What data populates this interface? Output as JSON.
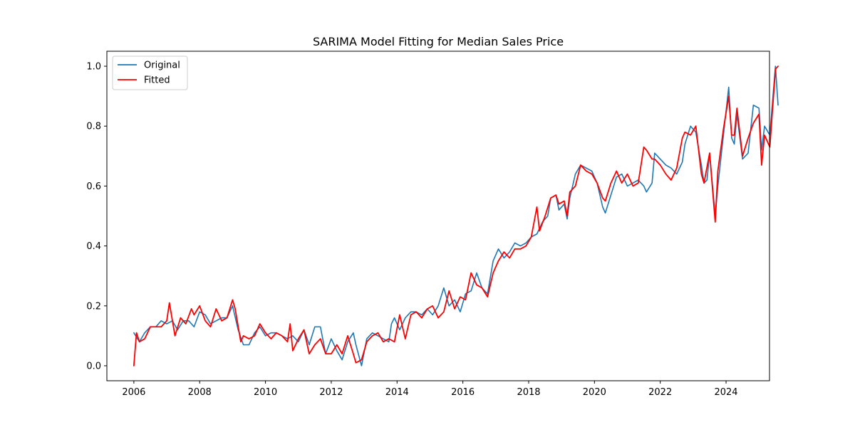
{
  "chart_data": {
    "type": "line",
    "title": "SARIMA Model Fitting for Median Sales Price",
    "xlabel": "",
    "ylabel": "",
    "xlim": [
      2005.18,
      2025.32
    ],
    "ylim": [
      -0.05,
      1.05
    ],
    "x_ticks": [
      2006,
      2008,
      2010,
      2012,
      2014,
      2016,
      2018,
      2020,
      2022,
      2024
    ],
    "y_ticks": [
      0.0,
      0.2,
      0.4,
      0.6,
      0.8,
      1.0
    ],
    "y_tick_labels": [
      "0.0",
      "0.2",
      "0.4",
      "0.6",
      "0.8",
      "1.0"
    ],
    "grid": false,
    "legend_position": "upper-left",
    "series": [
      {
        "name": "Original",
        "color": "#1f77b4",
        "points": [
          [
            2006.0,
            0.11
          ],
          [
            2006.17,
            0.08
          ],
          [
            2006.33,
            0.11
          ],
          [
            2006.5,
            0.13
          ],
          [
            2006.67,
            0.13
          ],
          [
            2006.83,
            0.15
          ],
          [
            2007.0,
            0.14
          ],
          [
            2007.17,
            0.15
          ],
          [
            2007.33,
            0.12
          ],
          [
            2007.5,
            0.15
          ],
          [
            2007.67,
            0.15
          ],
          [
            2007.83,
            0.13
          ],
          [
            2008.0,
            0.18
          ],
          [
            2008.17,
            0.17
          ],
          [
            2008.33,
            0.14
          ],
          [
            2008.5,
            0.15
          ],
          [
            2008.67,
            0.16
          ],
          [
            2008.83,
            0.16
          ],
          [
            2009.0,
            0.2
          ],
          [
            2009.17,
            0.12
          ],
          [
            2009.33,
            0.07
          ],
          [
            2009.5,
            0.07
          ],
          [
            2009.67,
            0.11
          ],
          [
            2009.83,
            0.13
          ],
          [
            2010.0,
            0.1
          ],
          [
            2010.17,
            0.11
          ],
          [
            2010.33,
            0.11
          ],
          [
            2010.5,
            0.1
          ],
          [
            2010.67,
            0.09
          ],
          [
            2010.83,
            0.1
          ],
          [
            2011.0,
            0.08
          ],
          [
            2011.17,
            0.12
          ],
          [
            2011.33,
            0.07
          ],
          [
            2011.5,
            0.13
          ],
          [
            2011.67,
            0.13
          ],
          [
            2011.83,
            0.04
          ],
          [
            2012.0,
            0.09
          ],
          [
            2012.17,
            0.05
          ],
          [
            2012.33,
            0.02
          ],
          [
            2012.5,
            0.08
          ],
          [
            2012.67,
            0.11
          ],
          [
            2012.75,
            0.07
          ],
          [
            2012.92,
            0.0
          ],
          [
            2013.08,
            0.09
          ],
          [
            2013.25,
            0.11
          ],
          [
            2013.42,
            0.1
          ],
          [
            2013.58,
            0.09
          ],
          [
            2013.75,
            0.08
          ],
          [
            2013.83,
            0.14
          ],
          [
            2013.92,
            0.16
          ],
          [
            2014.08,
            0.12
          ],
          [
            2014.25,
            0.16
          ],
          [
            2014.42,
            0.18
          ],
          [
            2014.58,
            0.18
          ],
          [
            2014.75,
            0.17
          ],
          [
            2014.92,
            0.19
          ],
          [
            2015.08,
            0.17
          ],
          [
            2015.25,
            0.2
          ],
          [
            2015.42,
            0.26
          ],
          [
            2015.58,
            0.2
          ],
          [
            2015.75,
            0.22
          ],
          [
            2015.92,
            0.18
          ],
          [
            2016.08,
            0.24
          ],
          [
            2016.25,
            0.25
          ],
          [
            2016.42,
            0.31
          ],
          [
            2016.58,
            0.26
          ],
          [
            2016.75,
            0.24
          ],
          [
            2016.92,
            0.35
          ],
          [
            2017.08,
            0.39
          ],
          [
            2017.25,
            0.36
          ],
          [
            2017.42,
            0.38
          ],
          [
            2017.58,
            0.41
          ],
          [
            2017.75,
            0.4
          ],
          [
            2017.92,
            0.41
          ],
          [
            2018.08,
            0.43
          ],
          [
            2018.25,
            0.44
          ],
          [
            2018.42,
            0.48
          ],
          [
            2018.58,
            0.5
          ],
          [
            2018.67,
            0.56
          ],
          [
            2018.83,
            0.57
          ],
          [
            2018.92,
            0.52
          ],
          [
            2019.08,
            0.54
          ],
          [
            2019.17,
            0.49
          ],
          [
            2019.25,
            0.56
          ],
          [
            2019.42,
            0.64
          ],
          [
            2019.58,
            0.67
          ],
          [
            2019.75,
            0.66
          ],
          [
            2019.92,
            0.65
          ],
          [
            2020.08,
            0.61
          ],
          [
            2020.25,
            0.53
          ],
          [
            2020.33,
            0.51
          ],
          [
            2020.5,
            0.57
          ],
          [
            2020.67,
            0.63
          ],
          [
            2020.83,
            0.64
          ],
          [
            2021.0,
            0.6
          ],
          [
            2021.17,
            0.61
          ],
          [
            2021.33,
            0.62
          ],
          [
            2021.5,
            0.6
          ],
          [
            2021.58,
            0.58
          ],
          [
            2021.75,
            0.61
          ],
          [
            2021.83,
            0.71
          ],
          [
            2022.0,
            0.69
          ],
          [
            2022.17,
            0.67
          ],
          [
            2022.33,
            0.66
          ],
          [
            2022.5,
            0.64
          ],
          [
            2022.67,
            0.68
          ],
          [
            2022.75,
            0.74
          ],
          [
            2022.92,
            0.8
          ],
          [
            2023.08,
            0.78
          ],
          [
            2023.25,
            0.67
          ],
          [
            2023.33,
            0.61
          ],
          [
            2023.42,
            0.62
          ],
          [
            2023.5,
            0.71
          ],
          [
            2023.67,
            0.5
          ],
          [
            2023.75,
            0.6
          ],
          [
            2023.92,
            0.77
          ],
          [
            2024.08,
            0.93
          ],
          [
            2024.17,
            0.76
          ],
          [
            2024.25,
            0.74
          ],
          [
            2024.33,
            0.84
          ],
          [
            2024.5,
            0.69
          ],
          [
            2024.67,
            0.71
          ],
          [
            2024.83,
            0.87
          ],
          [
            2025.0,
            0.86
          ],
          [
            2025.08,
            0.72
          ],
          [
            2025.17,
            0.8
          ],
          [
            2025.33,
            0.77
          ],
          [
            2025.5,
            1.0
          ],
          [
            2025.58,
            0.87
          ]
        ]
      },
      {
        "name": "Fitted",
        "color": "#ff0000",
        "points": [
          [
            2006.0,
            0.0
          ],
          [
            2006.08,
            0.11
          ],
          [
            2006.17,
            0.08
          ],
          [
            2006.33,
            0.09
          ],
          [
            2006.5,
            0.13
          ],
          [
            2006.67,
            0.13
          ],
          [
            2006.83,
            0.13
          ],
          [
            2007.0,
            0.15
          ],
          [
            2007.08,
            0.21
          ],
          [
            2007.25,
            0.1
          ],
          [
            2007.42,
            0.16
          ],
          [
            2007.58,
            0.14
          ],
          [
            2007.75,
            0.19
          ],
          [
            2007.83,
            0.17
          ],
          [
            2008.0,
            0.2
          ],
          [
            2008.17,
            0.15
          ],
          [
            2008.33,
            0.13
          ],
          [
            2008.5,
            0.19
          ],
          [
            2008.67,
            0.15
          ],
          [
            2008.83,
            0.16
          ],
          [
            2009.0,
            0.22
          ],
          [
            2009.08,
            0.19
          ],
          [
            2009.25,
            0.08
          ],
          [
            2009.33,
            0.1
          ],
          [
            2009.5,
            0.09
          ],
          [
            2009.67,
            0.1
          ],
          [
            2009.83,
            0.14
          ],
          [
            2010.0,
            0.11
          ],
          [
            2010.17,
            0.09
          ],
          [
            2010.33,
            0.11
          ],
          [
            2010.5,
            0.1
          ],
          [
            2010.67,
            0.08
          ],
          [
            2010.75,
            0.14
          ],
          [
            2010.83,
            0.05
          ],
          [
            2011.0,
            0.09
          ],
          [
            2011.17,
            0.12
          ],
          [
            2011.33,
            0.04
          ],
          [
            2011.5,
            0.07
          ],
          [
            2011.67,
            0.09
          ],
          [
            2011.83,
            0.04
          ],
          [
            2012.0,
            0.04
          ],
          [
            2012.17,
            0.07
          ],
          [
            2012.33,
            0.04
          ],
          [
            2012.5,
            0.1
          ],
          [
            2012.67,
            0.04
          ],
          [
            2012.75,
            0.01
          ],
          [
            2012.92,
            0.02
          ],
          [
            2013.08,
            0.08
          ],
          [
            2013.25,
            0.1
          ],
          [
            2013.42,
            0.11
          ],
          [
            2013.58,
            0.08
          ],
          [
            2013.75,
            0.09
          ],
          [
            2013.92,
            0.08
          ],
          [
            2014.08,
            0.17
          ],
          [
            2014.25,
            0.09
          ],
          [
            2014.42,
            0.17
          ],
          [
            2014.58,
            0.18
          ],
          [
            2014.75,
            0.16
          ],
          [
            2014.92,
            0.19
          ],
          [
            2015.08,
            0.2
          ],
          [
            2015.25,
            0.16
          ],
          [
            2015.42,
            0.18
          ],
          [
            2015.58,
            0.25
          ],
          [
            2015.75,
            0.19
          ],
          [
            2015.92,
            0.23
          ],
          [
            2016.08,
            0.22
          ],
          [
            2016.25,
            0.31
          ],
          [
            2016.42,
            0.27
          ],
          [
            2016.58,
            0.26
          ],
          [
            2016.75,
            0.23
          ],
          [
            2016.92,
            0.31
          ],
          [
            2017.08,
            0.35
          ],
          [
            2017.25,
            0.38
          ],
          [
            2017.42,
            0.36
          ],
          [
            2017.58,
            0.39
          ],
          [
            2017.75,
            0.39
          ],
          [
            2017.92,
            0.4
          ],
          [
            2018.08,
            0.43
          ],
          [
            2018.25,
            0.53
          ],
          [
            2018.33,
            0.45
          ],
          [
            2018.5,
            0.5
          ],
          [
            2018.67,
            0.56
          ],
          [
            2018.83,
            0.57
          ],
          [
            2018.92,
            0.54
          ],
          [
            2019.08,
            0.55
          ],
          [
            2019.17,
            0.5
          ],
          [
            2019.25,
            0.58
          ],
          [
            2019.42,
            0.6
          ],
          [
            2019.58,
            0.67
          ],
          [
            2019.75,
            0.65
          ],
          [
            2019.92,
            0.64
          ],
          [
            2020.08,
            0.61
          ],
          [
            2020.25,
            0.56
          ],
          [
            2020.33,
            0.55
          ],
          [
            2020.5,
            0.61
          ],
          [
            2020.67,
            0.65
          ],
          [
            2020.83,
            0.61
          ],
          [
            2021.0,
            0.64
          ],
          [
            2021.17,
            0.6
          ],
          [
            2021.33,
            0.61
          ],
          [
            2021.5,
            0.73
          ],
          [
            2021.58,
            0.72
          ],
          [
            2021.75,
            0.69
          ],
          [
            2021.83,
            0.69
          ],
          [
            2022.0,
            0.67
          ],
          [
            2022.17,
            0.64
          ],
          [
            2022.33,
            0.62
          ],
          [
            2022.5,
            0.66
          ],
          [
            2022.67,
            0.76
          ],
          [
            2022.75,
            0.78
          ],
          [
            2022.92,
            0.77
          ],
          [
            2023.08,
            0.8
          ],
          [
            2023.25,
            0.64
          ],
          [
            2023.33,
            0.61
          ],
          [
            2023.5,
            0.71
          ],
          [
            2023.67,
            0.48
          ],
          [
            2023.75,
            0.65
          ],
          [
            2023.92,
            0.79
          ],
          [
            2024.08,
            0.9
          ],
          [
            2024.17,
            0.77
          ],
          [
            2024.25,
            0.77
          ],
          [
            2024.33,
            0.86
          ],
          [
            2024.5,
            0.7
          ],
          [
            2024.67,
            0.76
          ],
          [
            2024.83,
            0.81
          ],
          [
            2025.0,
            0.84
          ],
          [
            2025.08,
            0.67
          ],
          [
            2025.17,
            0.77
          ],
          [
            2025.33,
            0.73
          ],
          [
            2025.5,
            0.99
          ],
          [
            2025.58,
            1.0
          ]
        ]
      }
    ]
  }
}
